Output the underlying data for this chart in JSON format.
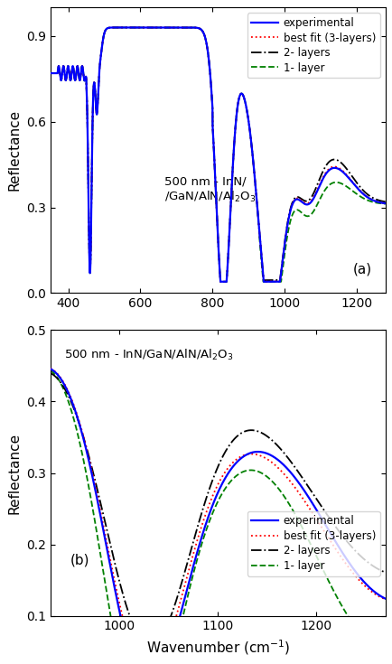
{
  "xlabel": "Wavenumber (cm$^{-1}$)",
  "ylabel": "Reflectance",
  "label_experimental": "experimental",
  "label_best_fit": "best fit (3-layers)",
  "label_2layers": "2- layers",
  "label_1layer": "1- layer",
  "color_exp": "#0000FF",
  "color_best": "#FF0000",
  "color_2lay": "#000000",
  "color_1lay": "#008000",
  "panel_a_xlim": [
    350,
    1280
  ],
  "panel_a_ylim": [
    0.0,
    1.0
  ],
  "panel_b_xlim": [
    930,
    1270
  ],
  "panel_b_ylim": [
    0.1,
    0.5
  ],
  "panel_a_xticks": [
    400,
    600,
    800,
    1000,
    1200
  ],
  "panel_a_yticks": [
    0.0,
    0.3,
    0.6,
    0.9
  ],
  "panel_b_xticks": [
    1000,
    1100,
    1200
  ],
  "panel_b_yticks": [
    0.1,
    0.2,
    0.3,
    0.4,
    0.5
  ],
  "annotation_a": "(a)",
  "annotation_b": "(b)",
  "text_a": "500 nm - InN/\n/GaN/AlN/Al$_2$O$_3$",
  "text_b": "500 nm - InN/GaN/AlN/Al$_2$O$_3$"
}
